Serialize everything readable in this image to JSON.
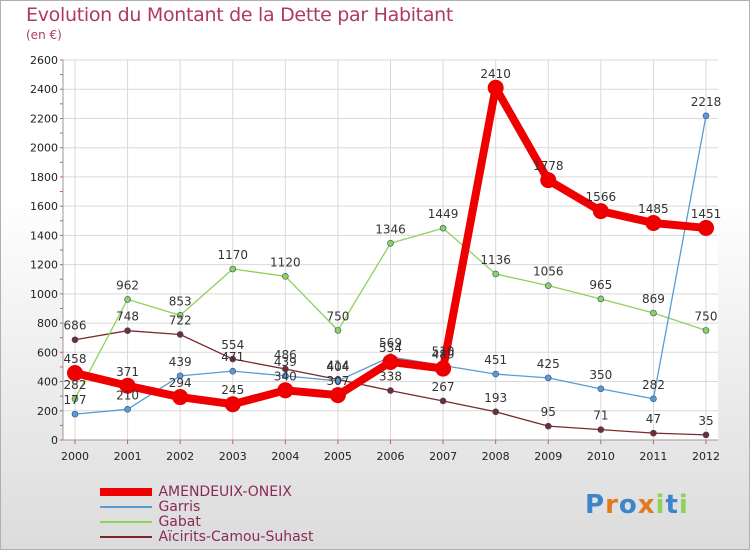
{
  "title": "Evolution du Montant de la Dette par Habitant",
  "subtitle": "(en €)",
  "logo": "Proxiti",
  "colors": {
    "amendeuix": "#ee0000",
    "garris": "#5a9bd4",
    "gabat": "#8fd25a",
    "aicirits": "#7a2a2a",
    "axis_text": "#222222",
    "grid": "#d9d9d9",
    "title": "#b03a5b"
  },
  "chart_data": {
    "type": "line",
    "x": [
      2000,
      2001,
      2002,
      2003,
      2004,
      2005,
      2006,
      2007,
      2008,
      2009,
      2010,
      2011,
      2012
    ],
    "ylim": [
      0,
      2600
    ],
    "yticks": [
      0,
      200,
      400,
      600,
      800,
      1000,
      1200,
      1400,
      1600,
      1800,
      2000,
      2200,
      2400,
      2600
    ],
    "grid": true,
    "legend_position": "bottom-left",
    "series": [
      {
        "name": "AMENDEUIX-ONEIX",
        "key": "amendeuix",
        "width": 8,
        "marker": 8,
        "values": [
          458,
          371,
          294,
          245,
          340,
          307,
          534,
          489,
          2410,
          1778,
          1566,
          1485,
          1451
        ]
      },
      {
        "name": "Garris",
        "key": "garris",
        "width": 1.3,
        "marker": 3,
        "values": [
          177,
          210,
          439,
          471,
          439,
          404,
          569,
          510,
          451,
          425,
          350,
          282,
          2218
        ]
      },
      {
        "name": "Gabat",
        "key": "gabat",
        "width": 1.3,
        "marker": 3,
        "values": [
          282,
          962,
          853,
          1170,
          1120,
          750,
          1346,
          1449,
          1136,
          1056,
          965,
          869,
          750
        ]
      },
      {
        "name": "Aïcirits-Camou-Suhast",
        "key": "aicirits",
        "width": 1.3,
        "marker": 3,
        "values": [
          686,
          748,
          722,
          554,
          486,
          414,
          338,
          267,
          193,
          95,
          71,
          47,
          35
        ]
      }
    ]
  }
}
